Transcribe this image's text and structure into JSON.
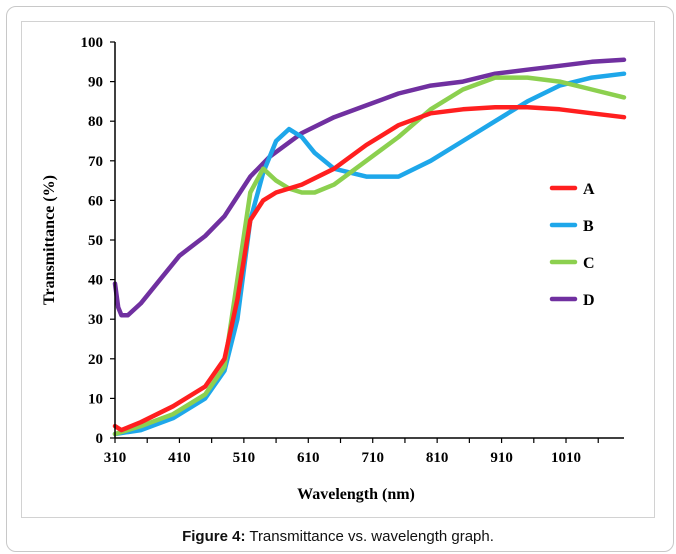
{
  "caption": {
    "label": "Figure 4:",
    "text": " Transmittance vs. wavelength graph."
  },
  "chart_data": {
    "type": "line",
    "xlabel": "Wavelength (nm)",
    "ylabel": "Transmittance (%)",
    "xlim": [
      310,
      1100
    ],
    "ylim": [
      0,
      100
    ],
    "xticks": [
      310,
      410,
      510,
      610,
      710,
      810,
      910,
      1010
    ],
    "yticks": [
      0,
      10,
      20,
      30,
      40,
      50,
      60,
      70,
      80,
      90,
      100
    ],
    "legend_position": "right",
    "series": [
      {
        "name": "A",
        "color": "#ff1f1f",
        "x": [
          310,
          315,
          320,
          350,
          400,
          450,
          480,
          500,
          520,
          540,
          560,
          600,
          650,
          700,
          750,
          800,
          850,
          900,
          950,
          1000,
          1050,
          1100
        ],
        "y": [
          3,
          2.5,
          2,
          4,
          8,
          13,
          20,
          35,
          55,
          60,
          62,
          64,
          68,
          74,
          79,
          82,
          83,
          83.5,
          83.5,
          83,
          82,
          81
        ]
      },
      {
        "name": "B",
        "color": "#1ea7ea",
        "x": [
          310,
          350,
          400,
          450,
          480,
          500,
          520,
          540,
          560,
          580,
          600,
          620,
          650,
          700,
          750,
          800,
          850,
          900,
          950,
          1000,
          1050,
          1100
        ],
        "y": [
          1,
          2,
          5,
          10,
          17,
          30,
          55,
          67,
          75,
          78,
          76,
          72,
          68,
          66,
          66,
          70,
          75,
          80,
          85,
          89,
          91,
          92
        ]
      },
      {
        "name": "C",
        "color": "#8cd04f",
        "x": [
          310,
          350,
          400,
          450,
          480,
          500,
          520,
          540,
          560,
          580,
          600,
          620,
          650,
          700,
          750,
          800,
          850,
          900,
          950,
          1000,
          1050,
          1100
        ],
        "y": [
          1,
          3,
          6,
          11,
          18,
          40,
          62,
          68,
          65,
          63,
          62,
          62,
          64,
          70,
          76,
          83,
          88,
          91,
          91,
          90,
          88,
          86
        ]
      },
      {
        "name": "D",
        "color": "#7030a0",
        "x": [
          310,
          315,
          320,
          330,
          350,
          380,
          410,
          450,
          480,
          500,
          520,
          550,
          600,
          650,
          700,
          750,
          800,
          850,
          900,
          950,
          1000,
          1050,
          1100
        ],
        "y": [
          39,
          33,
          31,
          31,
          34,
          40,
          46,
          51,
          56,
          61,
          66,
          71,
          77,
          81,
          84,
          87,
          89,
          90,
          92,
          93,
          94,
          95,
          95.5
        ]
      }
    ]
  }
}
